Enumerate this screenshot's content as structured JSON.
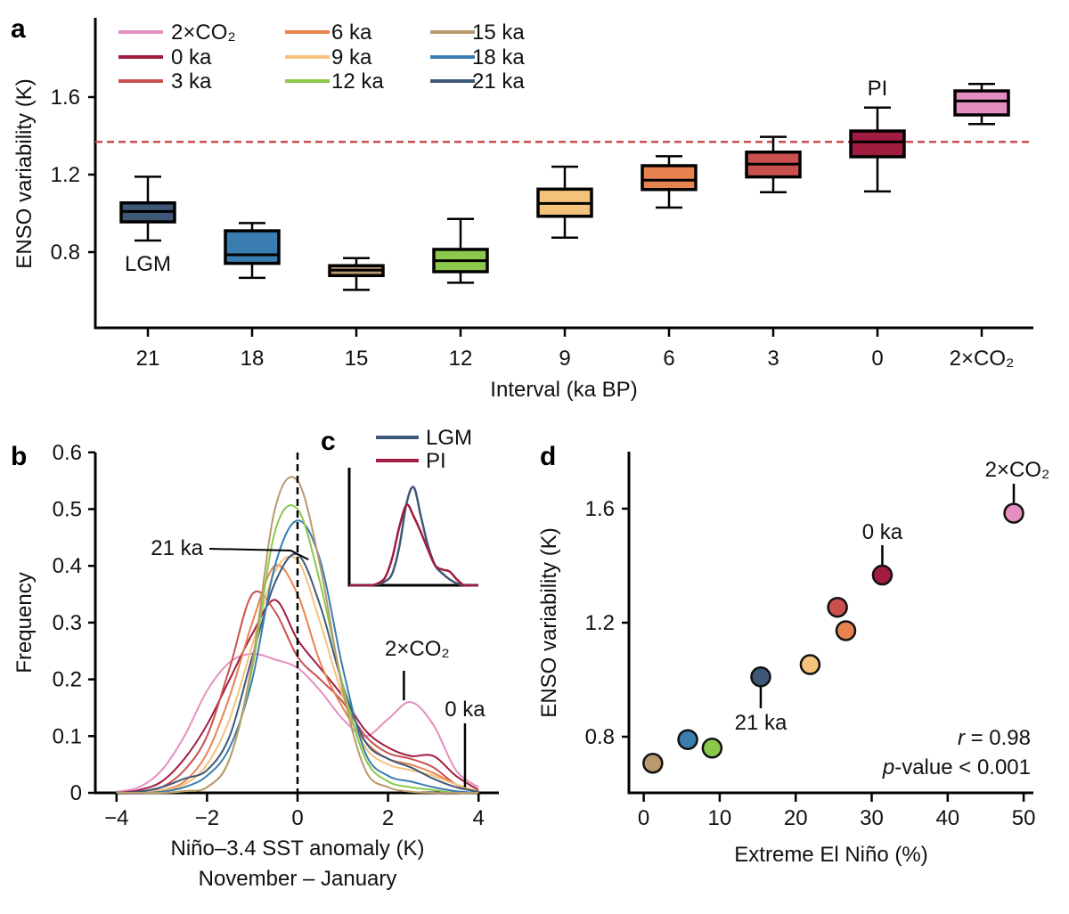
{
  "colors": {
    "2×CO₂": "#e48fc0",
    "0 ka": "#a01c40",
    "3 ka": "#c9504f",
    "6 ka": "#e8834f",
    "9 ka": "#f4c27a",
    "12 ka": "#8cc84b",
    "15 ka": "#b99a6e",
    "18 ka": "#3a7db0",
    "21 ka": "#3f5878",
    "LGM": "#3f5878",
    "PI": "#a01c40",
    "reference_line": "#c9504f"
  },
  "chart_data": [
    {
      "panel": "a",
      "type": "box",
      "xlabel": "Interval (ka BP)",
      "ylabel": "ENSO variability (K)",
      "ylim": [
        0.41,
        2.0
      ],
      "yticks": [
        "0.8",
        "1.2",
        "1.6"
      ],
      "categories": [
        "21",
        "18",
        "15",
        "12",
        "9",
        "6",
        "3",
        "0",
        "2×CO₂"
      ],
      "series_names": [
        "21 ka",
        "18 ka",
        "15 ka",
        "12 ka",
        "9 ka",
        "6 ka",
        "3 ka",
        "0 ka",
        "2×CO₂"
      ],
      "boxes": [
        {
          "whisker_low": 0.86,
          "q1": 0.956,
          "median": 1.01,
          "q3": 1.054,
          "whisker_high": 1.189
        },
        {
          "whisker_low": 0.667,
          "q1": 0.742,
          "median": 0.786,
          "q3": 0.91,
          "whisker_high": 0.95
        },
        {
          "whisker_low": 0.605,
          "q1": 0.679,
          "median": 0.707,
          "q3": 0.73,
          "whisker_high": 0.769
        },
        {
          "whisker_low": 0.642,
          "q1": 0.699,
          "median": 0.756,
          "q3": 0.814,
          "whisker_high": 0.971
        },
        {
          "whisker_low": 0.875,
          "q1": 0.985,
          "median": 1.051,
          "q3": 1.125,
          "whisker_high": 1.241
        },
        {
          "whisker_low": 1.03,
          "q1": 1.123,
          "median": 1.171,
          "q3": 1.246,
          "whisker_high": 1.295
        },
        {
          "whisker_low": 1.109,
          "q1": 1.188,
          "median": 1.254,
          "q3": 1.316,
          "whisker_high": 1.395
        },
        {
          "whisker_low": 1.113,
          "q1": 1.292,
          "median": 1.369,
          "q3": 1.425,
          "whisker_high": 1.546
        },
        {
          "whisker_low": 1.461,
          "q1": 1.508,
          "median": 1.58,
          "q3": 1.632,
          "whisker_high": 1.668
        }
      ],
      "reference_line": 1.369,
      "legend": {
        "placement": "top-left",
        "entries": [
          "2×CO₂",
          "0 ka",
          "3 ka",
          "6 ka",
          "9 ka",
          "12 ka",
          "15 ka",
          "18 ka",
          "21 ka"
        ]
      },
      "annotations": {
        "lgm": "LGM",
        "pi": "PI"
      }
    },
    {
      "panel": "b",
      "type": "line",
      "xlabel": "Niño–3.4 SST anomaly (K)",
      "xlabel2": "November – January",
      "ylabel": "Frequency",
      "xlim": [
        -4.5,
        4.5
      ],
      "ylim": [
        0,
        0.6
      ],
      "xticks": [
        "−4",
        "−2",
        "0",
        "2",
        "4"
      ],
      "yticks": [
        "0",
        "0.1",
        "0.2",
        "0.3",
        "0.4",
        "0.5",
        "0.6"
      ],
      "x": [
        -4.5,
        -4,
        -3.5,
        -3,
        -2.5,
        -2,
        -1.5,
        -1,
        -0.5,
        0,
        0.5,
        1,
        1.5,
        2,
        2.5,
        3,
        3.5,
        4,
        4.5
      ],
      "series": [
        {
          "name": "2×CO₂",
          "values": [
            0,
            0.002,
            0.01,
            0.04,
            0.1,
            0.18,
            0.23,
            0.245,
            0.235,
            0.22,
            0.18,
            0.13,
            0.1,
            0.13,
            0.16,
            0.12,
            0.04,
            0.01,
            0
          ]
        },
        {
          "name": "0 ka",
          "values": [
            0,
            0,
            0.005,
            0.02,
            0.06,
            0.12,
            0.2,
            0.28,
            0.34,
            0.27,
            0.22,
            0.17,
            0.11,
            0.08,
            0.065,
            0.065,
            0.03,
            0.005,
            0
          ]
        },
        {
          "name": "3 ka",
          "values": [
            0,
            0,
            0.002,
            0.01,
            0.04,
            0.1,
            0.22,
            0.35,
            0.32,
            0.24,
            0.2,
            0.16,
            0.1,
            0.07,
            0.06,
            0.045,
            0.015,
            0.003,
            0
          ]
        },
        {
          "name": "6 ka",
          "values": [
            0,
            0,
            0.001,
            0.005,
            0.02,
            0.07,
            0.17,
            0.3,
            0.4,
            0.35,
            0.23,
            0.15,
            0.09,
            0.06,
            0.05,
            0.035,
            0.015,
            0.003,
            0
          ]
        },
        {
          "name": "9 ka",
          "values": [
            0,
            0,
            0.001,
            0.005,
            0.015,
            0.05,
            0.13,
            0.26,
            0.39,
            0.41,
            0.3,
            0.17,
            0.08,
            0.05,
            0.04,
            0.03,
            0.015,
            0.003,
            0
          ]
        },
        {
          "name": "21 ka",
          "values": [
            0,
            0,
            0.002,
            0.01,
            0.025,
            0.04,
            0.1,
            0.24,
            0.37,
            0.42,
            0.33,
            0.19,
            0.09,
            0.06,
            0.045,
            0.025,
            0.01,
            0.002,
            0
          ]
        },
        {
          "name": "18 ka",
          "values": [
            0,
            0,
            0,
            0.002,
            0.01,
            0.03,
            0.08,
            0.2,
            0.4,
            0.48,
            0.41,
            0.22,
            0.07,
            0.03,
            0.02,
            0.01,
            0.003,
            0,
            0
          ]
        },
        {
          "name": "12 ka",
          "values": [
            0,
            0,
            0,
            0,
            0.003,
            0.01,
            0.06,
            0.22,
            0.46,
            0.5,
            0.37,
            0.19,
            0.06,
            0.02,
            0.01,
            0.005,
            0,
            0,
            0
          ]
        },
        {
          "name": "15 ka",
          "values": [
            0,
            0,
            0,
            0,
            0.003,
            0.01,
            0.06,
            0.23,
            0.5,
            0.55,
            0.4,
            0.18,
            0.04,
            0.01,
            0.002,
            0,
            0,
            0,
            0
          ]
        }
      ],
      "vline_x": 0,
      "annotations": [
        {
          "text": "21 ka",
          "x": -0.25,
          "y": 0.43
        },
        {
          "text": "2×CO₂",
          "x": 2.35,
          "y": 0.16
        },
        {
          "text": "0 ka",
          "x": 3.7,
          "y": 0.01
        }
      ]
    },
    {
      "panel": "c",
      "type": "line",
      "inset": true,
      "xlim": [
        -4.5,
        4.5
      ],
      "ylim": [
        0,
        0.6
      ],
      "x": [
        -4.5,
        -4,
        -3.5,
        -3,
        -2.5,
        -2,
        -1.5,
        -1,
        -0.5,
        0,
        0.5,
        1,
        1.5,
        2,
        2.5,
        3,
        3.5,
        4,
        4.5
      ],
      "series": [
        {
          "name": "LGM",
          "values": [
            0,
            0,
            0,
            0,
            0.005,
            0.02,
            0.06,
            0.2,
            0.42,
            0.5,
            0.35,
            0.2,
            0.1,
            0.06,
            0.03,
            0.01,
            0,
            0,
            0
          ]
        },
        {
          "name": "PI",
          "values": [
            0,
            0,
            0,
            0,
            0.01,
            0.04,
            0.14,
            0.3,
            0.41,
            0.35,
            0.27,
            0.18,
            0.1,
            0.08,
            0.07,
            0.03,
            0,
            0,
            0
          ]
        }
      ],
      "legend": {
        "placement": "top",
        "entries": [
          "LGM",
          "PI"
        ]
      }
    },
    {
      "panel": "d",
      "type": "scatter",
      "xlabel": "Extreme El Niño (%)",
      "ylabel": "ENSO variability (K)",
      "xlim": [
        -2,
        51
      ],
      "ylim": [
        0.6,
        1.8
      ],
      "xticks": [
        "0",
        "10",
        "20",
        "30",
        "40",
        "50"
      ],
      "yticks": [
        "0.8",
        "1.2",
        "1.6"
      ],
      "points": [
        {
          "name": "15 ka",
          "x": 1.2,
          "y": 0.707
        },
        {
          "name": "18 ka",
          "x": 5.8,
          "y": 0.79
        },
        {
          "name": "12 ka",
          "x": 9.0,
          "y": 0.76
        },
        {
          "name": "21 ka",
          "x": 15.4,
          "y": 1.01
        },
        {
          "name": "9 ka",
          "x": 21.9,
          "y": 1.053
        },
        {
          "name": "3 ka",
          "x": 25.5,
          "y": 1.254
        },
        {
          "name": "6 ka",
          "x": 26.6,
          "y": 1.172
        },
        {
          "name": "0 ka",
          "x": 31.4,
          "y": 1.367
        },
        {
          "name": "2×CO₂",
          "x": 48.7,
          "y": 1.584
        }
      ],
      "annotations": {
        "label_21": "21 ka",
        "label_0": "0 ka",
        "label_co2": "2×CO₂"
      },
      "stats": {
        "r_symbol": "r",
        "r_text": " = 0.98",
        "p_symbol": "p",
        "p_text": "-value < 0.001"
      }
    }
  ],
  "panel_labels": {
    "a": "a",
    "b": "b",
    "c": "c",
    "d": "d"
  }
}
